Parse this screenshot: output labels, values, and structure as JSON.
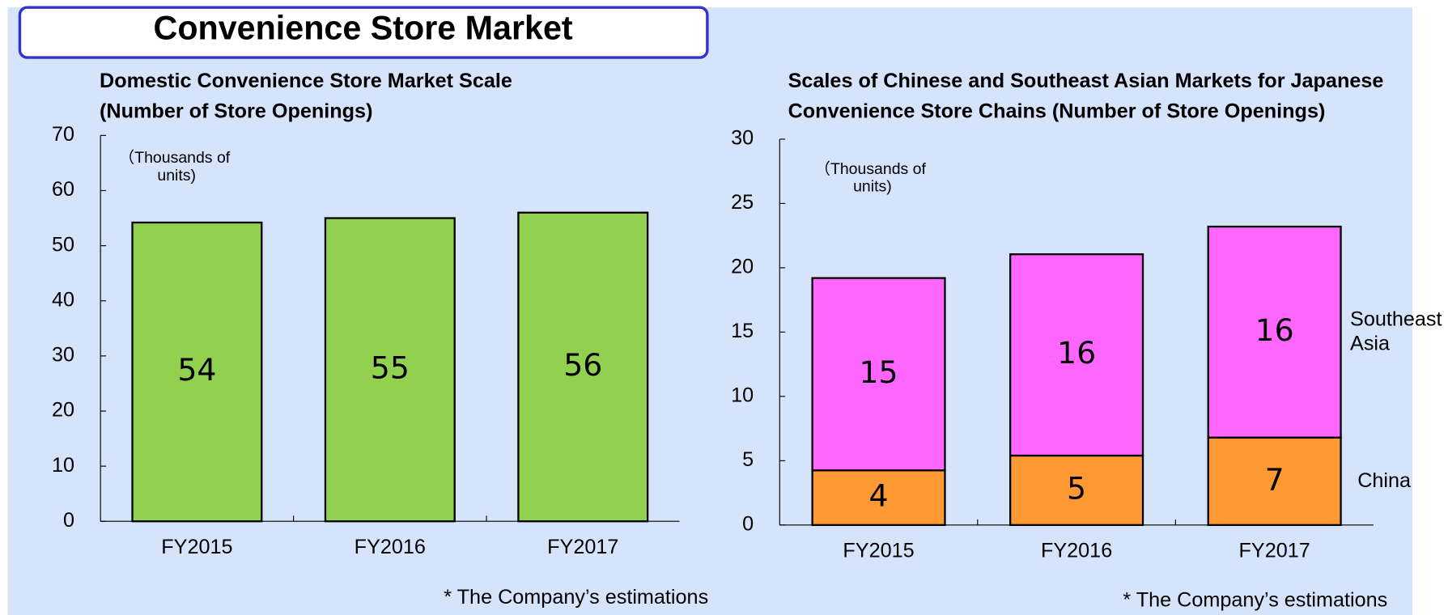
{
  "header": {
    "title": "Convenience Store Market"
  },
  "chart_data": [
    {
      "type": "bar",
      "title": "Domestic Convenience Store Market Scale (Number of Store Openings)",
      "annotation": "（Thousands of units)",
      "note": "* The Company’s estimations",
      "categories": [
        "FY2015",
        "FY2016",
        "FY2017"
      ],
      "values": [
        54.2,
        55,
        56
      ],
      "value_labels": [
        "54",
        "55",
        "56"
      ],
      "color": "#92d050",
      "ylim": [
        0,
        70
      ],
      "yticks": [
        0,
        10,
        20,
        30,
        40,
        50,
        60,
        70
      ],
      "grid": false
    },
    {
      "type": "stacked_bar",
      "title": "Scales of Chinese and Southeast Asian Markets for Japanese Convenience Store Chains (Number of Store Openings)",
      "annotation": "（Thousands of units)",
      "note": "* The Company’s estimations",
      "categories": [
        "FY2015",
        "FY2016",
        "FY2017"
      ],
      "series": [
        {
          "name": "China",
          "color": "#ff9933",
          "values": [
            4.25,
            5.4,
            6.8
          ],
          "value_labels": [
            "4",
            "5",
            "7"
          ]
        },
        {
          "name": "Southeast Asia",
          "color": "#ff66ff",
          "values": [
            14.95,
            15.65,
            16.4
          ],
          "value_labels": [
            "15",
            "16",
            "16"
          ]
        }
      ],
      "ylim": [
        0,
        30
      ],
      "yticks": [
        0,
        5,
        10,
        15,
        20,
        25,
        30
      ],
      "grid": false
    }
  ]
}
